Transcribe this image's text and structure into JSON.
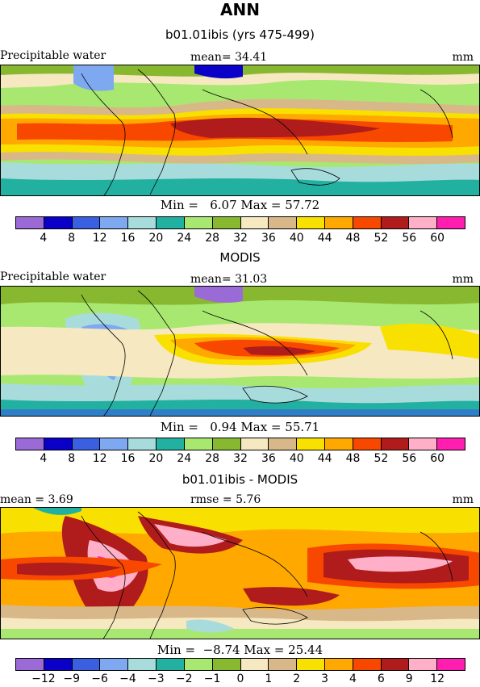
{
  "title": "ANN",
  "palette": [
    "#9a6bd6",
    "#0a00c8",
    "#3a5fe0",
    "#7ea8f0",
    "#a8dcdc",
    "#22b0a0",
    "#a8e870",
    "#88b830",
    "#f6e8c0",
    "#d8b888",
    "#f8e000",
    "#ffa800",
    "#f84800",
    "#b01c1c",
    "#ffb0c8",
    "#ff1eb0"
  ],
  "panel1": {
    "subtitle": "b01.01ibis (yrs 475-499)",
    "left_label": "Precipitable water",
    "mean_label": "mean=  34.41",
    "units": "mm",
    "minmax": "Min =   6.07 Max = 57.72",
    "ticks": [
      "4",
      "8",
      "12",
      "16",
      "20",
      "24",
      "28",
      "32",
      "36",
      "40",
      "44",
      "48",
      "52",
      "56",
      "60"
    ]
  },
  "panel2": {
    "subtitle": "MODIS",
    "left_label": "Precipitable water",
    "mean_label": "mean=  31.03",
    "units": "mm",
    "minmax": "Min =   0.94 Max = 55.71",
    "ticks": [
      "4",
      "8",
      "12",
      "16",
      "20",
      "24",
      "28",
      "32",
      "36",
      "40",
      "44",
      "48",
      "52",
      "56",
      "60"
    ]
  },
  "panel3": {
    "subtitle": "b01.01ibis - MODIS",
    "mean_label": "mean =    3.69",
    "rmse_label": "rmse =    5.76",
    "units": "mm",
    "minmax": "Min =  −8.74 Max = 25.44",
    "ticks": [
      "−12",
      "−9",
      "−6",
      "−4",
      "−3",
      "−2",
      "−1",
      "0",
      "1",
      "2",
      "3",
      "4",
      "6",
      "9",
      "12"
    ]
  }
}
